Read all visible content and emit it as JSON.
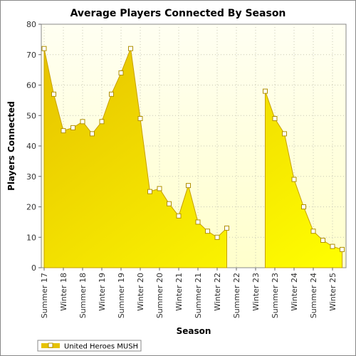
{
  "chart_data": {
    "type": "area",
    "title": "Average Players Connected By Season",
    "xlabel": "Season",
    "ylabel": "Players Connected",
    "ylim": [
      0,
      80
    ],
    "yticks": [
      0,
      10,
      20,
      30,
      40,
      50,
      60,
      70,
      80
    ],
    "categories": [
      "Summer 17",
      "Winter 18",
      "Summer 18",
      "Winter 19",
      "Summer 19",
      "Winter 20",
      "Summer 20",
      "Winter 21",
      "Summer 21",
      "Winter 22",
      "Summer 22",
      "Winter 23",
      "Summer 23",
      "Winter 24",
      "Summer 24",
      "Winter 25"
    ],
    "series": [
      {
        "name": "United Heroes MUSH",
        "x": [
          0,
          0.5,
          1,
          1.5,
          2,
          2.5,
          3,
          3.5,
          4,
          4.5,
          5,
          5.5,
          6,
          6.5,
          7,
          7.5,
          8,
          8.5,
          9,
          9.5,
          10,
          10.5,
          11,
          11.5,
          12,
          12.5,
          13,
          13.5,
          14,
          14.5,
          15,
          15.5
        ],
        "values": [
          72,
          57,
          45,
          46,
          48,
          44,
          48,
          57,
          64,
          72,
          49,
          25,
          26,
          21,
          17,
          27,
          15,
          12,
          10,
          13,
          null,
          null,
          null,
          58,
          49,
          44,
          29,
          20,
          12,
          9,
          7,
          6
        ]
      }
    ],
    "grid": true,
    "legend": "bottom-left",
    "colors": {
      "fill_top": "#e6c200",
      "fill_bottom": "#ffff00",
      "line": "#c8a000",
      "marker_fill": "#ffffff",
      "marker_stroke": "#b09000",
      "plot_bg_top": "#fffff2",
      "plot_bg_bottom": "#ffffcc"
    }
  }
}
